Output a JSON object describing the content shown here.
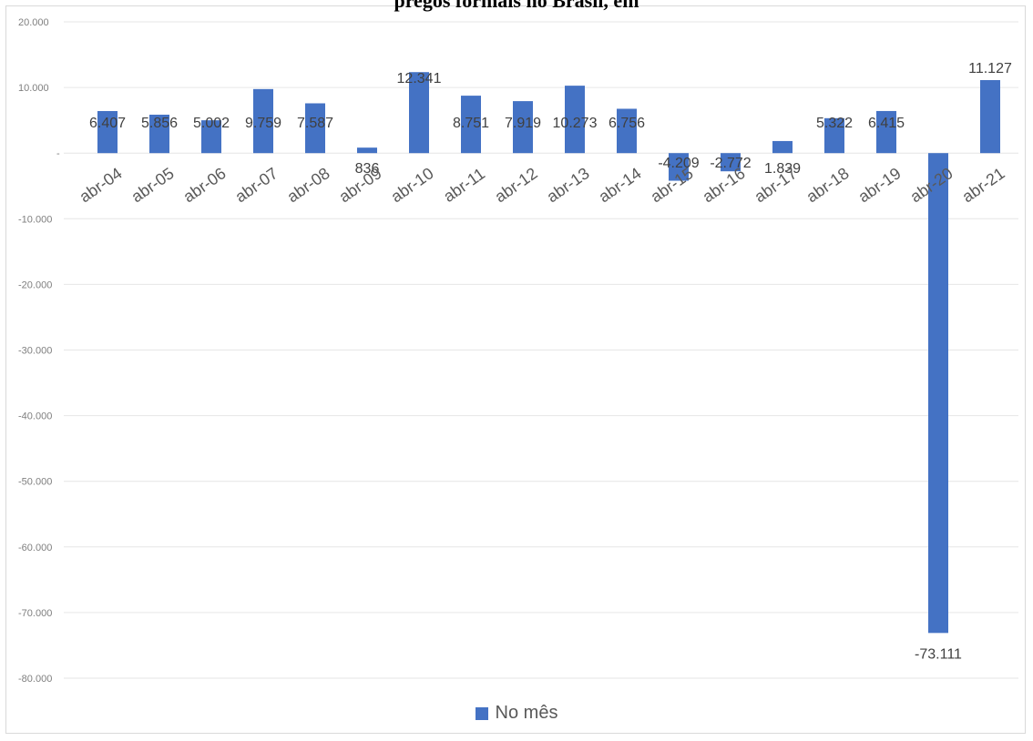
{
  "chart_data": {
    "type": "bar",
    "title": "pregos formais no Brasil, em",
    "categories": [
      "abr-04",
      "abr-05",
      "abr-06",
      "abr-07",
      "abr-08",
      "abr-09",
      "abr-10",
      "abr-11",
      "abr-12",
      "abr-13",
      "abr-14",
      "abr-15",
      "abr-16",
      "abr-17",
      "abr-18",
      "abr-19",
      "abr-20",
      "abr-21"
    ],
    "series": [
      {
        "name": "No mês",
        "color": "#4472c4",
        "values": [
          6407,
          5856,
          5002,
          9759,
          7587,
          836,
          12341,
          8751,
          7919,
          10273,
          6756,
          -4209,
          -2772,
          1839,
          5322,
          6415,
          -73111,
          11127
        ],
        "labels": [
          "6.407",
          "5.856",
          "5.002",
          "9.759",
          "7.587",
          "836",
          "12.341",
          "8.751",
          "7.919",
          "10.273",
          "6.756",
          "-4.209",
          "-2.772",
          "1.839",
          "5.322",
          "6.415",
          "-73.111",
          "11.127"
        ]
      }
    ],
    "ylim": [
      -80000,
      20000
    ],
    "yticks": [
      20000,
      10000,
      0,
      -10000,
      -20000,
      -30000,
      -40000,
      -50000,
      -60000,
      -70000,
      -80000
    ],
    "ytick_labels": [
      "20.000",
      "10.000",
      "-",
      "-10.000",
      "-20.000",
      "-30.000",
      "-40.000",
      "-50.000",
      "-60.000",
      "-70.000",
      "-80.000"
    ],
    "grid": true,
    "legend_position": "bottom"
  }
}
